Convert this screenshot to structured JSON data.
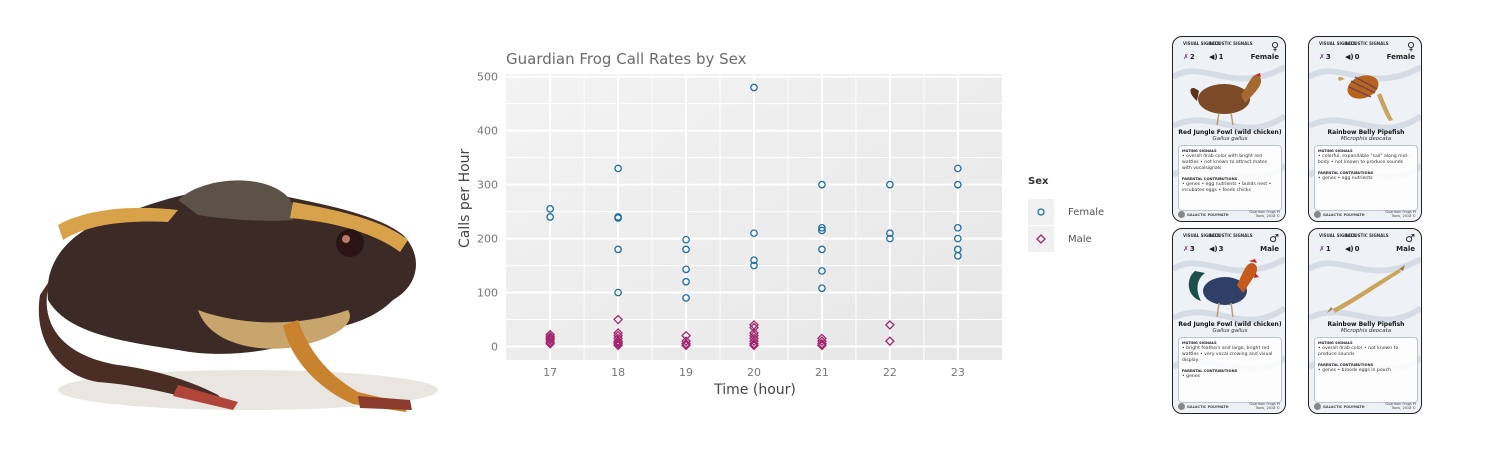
{
  "chart_data": {
    "type": "scatter",
    "title": "Guardian Frog Call Rates by Sex",
    "xlabel": "Time (hour)",
    "ylabel": "Calls per Hour",
    "x_ticks": [
      17,
      18,
      19,
      20,
      21,
      22,
      23
    ],
    "y_ticks": [
      0,
      100,
      200,
      300,
      400,
      500
    ],
    "xlim": [
      16.35,
      23.65
    ],
    "ylim": [
      -25,
      505
    ],
    "grid": true,
    "legend": {
      "title": "Sex",
      "placement": "right"
    },
    "series": [
      {
        "name": "Female",
        "marker": "circle",
        "color": "#1f6f9f",
        "points": [
          [
            17,
            255
          ],
          [
            17,
            240
          ],
          [
            18,
            330
          ],
          [
            18,
            240
          ],
          [
            18,
            238
          ],
          [
            18,
            180
          ],
          [
            18,
            100
          ],
          [
            19,
            198
          ],
          [
            19,
            180
          ],
          [
            19,
            143
          ],
          [
            19,
            120
          ],
          [
            19,
            90
          ],
          [
            20,
            480
          ],
          [
            20,
            210
          ],
          [
            20,
            160
          ],
          [
            20,
            150
          ],
          [
            21,
            300
          ],
          [
            21,
            220
          ],
          [
            21,
            215
          ],
          [
            21,
            180
          ],
          [
            21,
            140
          ],
          [
            21,
            108
          ],
          [
            22,
            300
          ],
          [
            22,
            210
          ],
          [
            22,
            200
          ],
          [
            23,
            330
          ],
          [
            23,
            300
          ],
          [
            23,
            220
          ],
          [
            23,
            200
          ],
          [
            23,
            180
          ],
          [
            23,
            168
          ]
        ]
      },
      {
        "name": "Male",
        "marker": "diamond",
        "color": "#a3266f",
        "points": [
          [
            17,
            22
          ],
          [
            17,
            18
          ],
          [
            17,
            15
          ],
          [
            17,
            12
          ],
          [
            17,
            8
          ],
          [
            17,
            5
          ],
          [
            18,
            50
          ],
          [
            18,
            25
          ],
          [
            18,
            20
          ],
          [
            18,
            15
          ],
          [
            18,
            10
          ],
          [
            18,
            8
          ],
          [
            18,
            5
          ],
          [
            18,
            2
          ],
          [
            19,
            20
          ],
          [
            19,
            10
          ],
          [
            19,
            5
          ],
          [
            19,
            2
          ],
          [
            20,
            40
          ],
          [
            20,
            35
          ],
          [
            20,
            25
          ],
          [
            20,
            20
          ],
          [
            20,
            15
          ],
          [
            20,
            10
          ],
          [
            20,
            5
          ],
          [
            20,
            2
          ],
          [
            21,
            15
          ],
          [
            21,
            10
          ],
          [
            21,
            5
          ],
          [
            21,
            2
          ],
          [
            22,
            40
          ],
          [
            22,
            10
          ]
        ]
      }
    ]
  },
  "frog_image": {
    "subject": "frog"
  },
  "cards": [
    {
      "id": "jungle-fowl-female",
      "visual_label": "VISUAL SIGNALS",
      "acoustic_label": "ACOUSTIC SIGNALS",
      "visual_value": "2",
      "acoustic_value": "1",
      "sex_symbol": "♀",
      "sex": "Female",
      "name": "Red Jungle Fowl (wild chicken)",
      "scientific": "Gallus gallus",
      "mating_heading": "MATING SIGNALS",
      "mating_text": "• overall drab color with bright red wattles • not known to attract mates with vocalsignals",
      "parental_heading": "PARENTAL CONTRIBUTIONS",
      "parental_text": "• genes • egg nutrients • builds nest • incubates eggs • feeds chicks",
      "footer_brand": "GALACTIC POLYMATH",
      "footer_note": "Guardian Frogs PI Tools, 2018 ©"
    },
    {
      "id": "pipefish-female",
      "visual_label": "VISUAL SIGNALS",
      "acoustic_label": "ACOUSTIC SIGNALS",
      "visual_value": "3",
      "acoustic_value": "0",
      "sex_symbol": "♀",
      "sex": "Female",
      "name": "Rainbow Belly Pipefish",
      "scientific": "Microphis deocata",
      "mating_heading": "MATING SIGNALS",
      "mating_text": "• colorful, expandable \"sail\" along mid-body • not known to produce sounds",
      "parental_heading": "PARENTAL CONTRIBUTIONS",
      "parental_text": "• genes • egg nutrients",
      "footer_brand": "GALACTIC POLYMATH",
      "footer_note": "Guardian Frogs PI Tools, 2018 ©"
    },
    {
      "id": "jungle-fowl-male",
      "visual_label": "VISUAL SIGNALS",
      "acoustic_label": "ACOUSTIC SIGNALS",
      "visual_value": "3",
      "acoustic_value": "3",
      "sex_symbol": "♂",
      "sex": "Male",
      "name": "Red Jungle Fowl (wild chicken)",
      "scientific": "Gallus gallus",
      "mating_heading": "MATING SIGNALS",
      "mating_text": "• bright feathers and large, bright red wattles • very vocal crowing and visual display",
      "parental_heading": "PARENTAL CONTRIBUTIONS",
      "parental_text": "• genes",
      "footer_brand": "GALACTIC POLYMATH",
      "footer_note": "Guardian Frogs PI Tools, 2018 ©"
    },
    {
      "id": "pipefish-male",
      "visual_label": "VISUAL SIGNALS",
      "acoustic_label": "ACOUSTIC SIGNALS",
      "visual_value": "1",
      "acoustic_value": "0",
      "sex_symbol": "♂",
      "sex": "Male",
      "name": "Rainbow Belly Pipefish",
      "scientific": "Microphis deocata",
      "mating_heading": "MATING SIGNALS",
      "mating_text": "• overall drab color • not known to produce sounds",
      "parental_heading": "PARENTAL CONTRIBUTIONS",
      "parental_text": "• genes • broods eggs in pouch",
      "footer_brand": "GALACTIC POLYMATH",
      "footer_note": "Guardian Frogs PI Tools, 2018 ©"
    }
  ]
}
